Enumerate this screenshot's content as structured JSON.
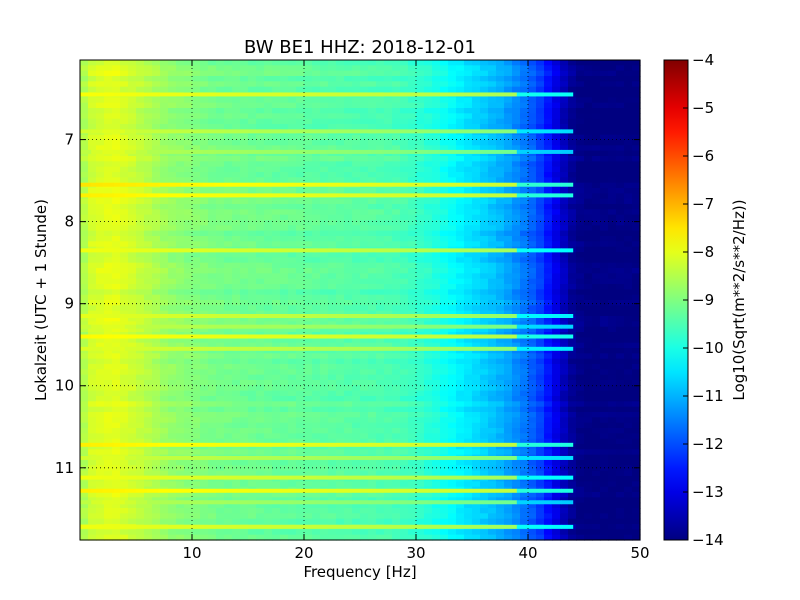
{
  "chart_data": {
    "type": "heatmap",
    "title": "BW BE1 HHZ: 2018-12-01",
    "xlabel": "Frequency [Hz]",
    "ylabel": "Lokalzeit (UTC + 1 Stunde)",
    "xlim": [
      0,
      50
    ],
    "ylim": [
      11.88,
      6.03
    ],
    "x_ticks": [
      {
        "value": 10,
        "label": "10"
      },
      {
        "value": 20,
        "label": "20"
      },
      {
        "value": 30,
        "label": "30"
      },
      {
        "value": 40,
        "label": "40"
      },
      {
        "value": 50,
        "label": "50"
      }
    ],
    "y_ticks": [
      {
        "value": 7,
        "label": "7"
      },
      {
        "value": 8,
        "label": "8"
      },
      {
        "value": 9,
        "label": "9"
      },
      {
        "value": 10,
        "label": "10"
      },
      {
        "value": 11,
        "label": "11"
      }
    ],
    "grid": true,
    "grid_style": "dotted",
    "colormap": "jet",
    "colorbar": {
      "label": "Log10(Sqrt(m**2/s**2/Hz))",
      "range": [
        -14,
        -4
      ],
      "ticks": [
        {
          "value": -4,
          "label": "−4"
        },
        {
          "value": -5,
          "label": "−5"
        },
        {
          "value": -6,
          "label": "−6"
        },
        {
          "value": -7,
          "label": "−7"
        },
        {
          "value": -8,
          "label": "−8"
        },
        {
          "value": -9,
          "label": "−9"
        },
        {
          "value": -10,
          "label": "−10"
        },
        {
          "value": -11,
          "label": "−11"
        },
        {
          "value": -12,
          "label": "−12"
        },
        {
          "value": -13,
          "label": "−13"
        },
        {
          "value": -14,
          "label": "−14"
        }
      ]
    },
    "frequency_profile": {
      "frequency_hz": [
        0,
        1,
        3,
        5,
        8,
        12,
        16,
        20,
        24,
        28,
        30,
        32,
        34,
        36,
        38,
        40,
        41,
        42,
        43,
        44,
        45,
        50
      ],
      "value": [
        -8.7,
        -8.2,
        -8.0,
        -8.3,
        -8.8,
        -9.1,
        -9.2,
        -9.3,
        -9.4,
        -9.5,
        -9.7,
        -10.0,
        -10.4,
        -10.7,
        -11.1,
        -11.7,
        -12.1,
        -12.7,
        -13.3,
        -13.8,
        -14.0,
        -14.0
      ]
    },
    "time_bands": [
      {
        "time": 6.45,
        "value": -7.8
      },
      {
        "time": 6.9,
        "value": -8.2
      },
      {
        "time": 7.15,
        "value": -8.4
      },
      {
        "time": 7.55,
        "value": -7.5
      },
      {
        "time": 7.68,
        "value": -7.6
      },
      {
        "time": 8.35,
        "value": -7.9
      },
      {
        "time": 9.15,
        "value": -8.0
      },
      {
        "time": 9.28,
        "value": -8.3
      },
      {
        "time": 9.4,
        "value": -7.7
      },
      {
        "time": 9.55,
        "value": -8.1
      },
      {
        "time": 10.72,
        "value": -7.6
      },
      {
        "time": 10.88,
        "value": -8.2
      },
      {
        "time": 11.12,
        "value": -7.9
      },
      {
        "time": 11.28,
        "value": -7.6
      },
      {
        "time": 11.42,
        "value": -8.4
      },
      {
        "time": 11.72,
        "value": -7.9
      }
    ]
  }
}
